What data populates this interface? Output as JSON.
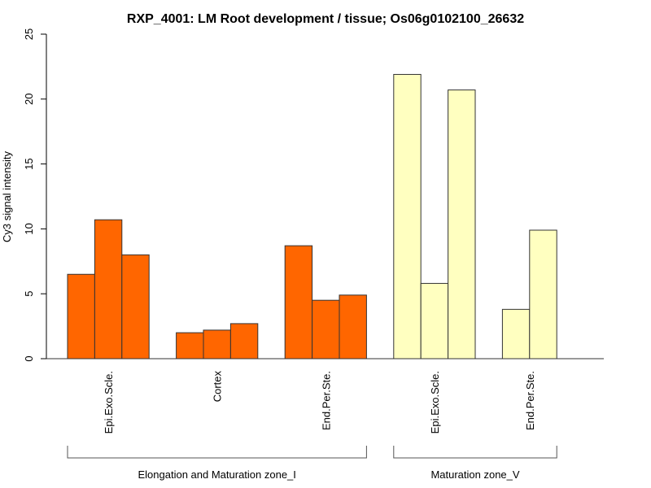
{
  "chart_data": {
    "type": "bar",
    "title": "RXP_4001: LM Root development / tissue; Os06g0102100_26632",
    "xlabel": "",
    "ylabel": "Cy3 signal intensity",
    "ylim": [
      0,
      25
    ],
    "yticks": [
      0,
      5,
      10,
      15,
      20,
      25
    ],
    "grid": false,
    "legend": "none",
    "categories": [
      {
        "label": "Epi.Exo.Scle.",
        "group": 0,
        "values": [
          6.5,
          10.7,
          8.0
        ]
      },
      {
        "label": "Cortex",
        "group": 0,
        "values": [
          2.0,
          2.2,
          2.7
        ]
      },
      {
        "label": "End.Per.Ste.",
        "group": 0,
        "values": [
          8.7,
          4.5,
          4.9
        ]
      },
      {
        "label": "Epi.Exo.Scle.",
        "group": 1,
        "values": [
          21.9,
          5.8,
          20.7
        ]
      },
      {
        "label": "End.Per.Ste.",
        "group": 1,
        "values": [
          3.8,
          9.9
        ]
      }
    ],
    "groups": [
      {
        "label": "Elongation and Maturation zone_I",
        "color": "#ff6600"
      },
      {
        "label": "Maturation zone_V",
        "color": "#ffffc0"
      }
    ]
  }
}
